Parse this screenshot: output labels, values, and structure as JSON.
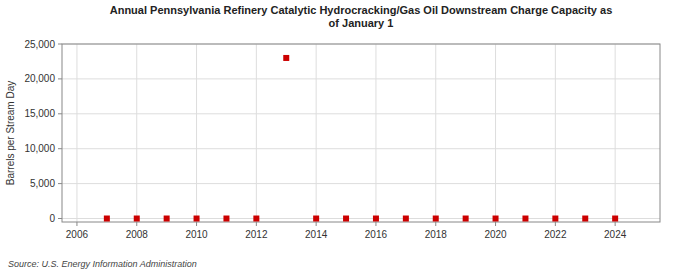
{
  "chart_data": {
    "type": "scatter",
    "title": "Annual Pennsylvania Refinery Catalytic Hydrocracking/Gas Oil Downstream Charge Capacity as\nof January 1",
    "y_label": "Barrels per Stream Day",
    "source": "Source: U.S. Energy Information Administration",
    "x": [
      2007,
      2008,
      2009,
      2010,
      2011,
      2012,
      2013,
      2014,
      2015,
      2016,
      2017,
      2018,
      2019,
      2020,
      2021,
      2022,
      2023,
      2024
    ],
    "values": [
      0,
      0,
      0,
      0,
      0,
      0,
      23000,
      0,
      0,
      0,
      0,
      0,
      0,
      0,
      0,
      0,
      0,
      0
    ],
    "color": "#cc0000",
    "marker": "square",
    "xlim": [
      2005.5,
      2025.5
    ],
    "ylim": [
      -500,
      25000
    ],
    "xticks": [
      2006,
      2008,
      2010,
      2012,
      2014,
      2016,
      2018,
      2020,
      2022,
      2024
    ],
    "yticks": [
      0,
      {
        "value": 5000,
        "label": "5,000"
      },
      {
        "value": 10000,
        "label": "10,000"
      },
      {
        "value": 15000,
        "label": "15,000"
      },
      {
        "value": 20000,
        "label": "20,000"
      },
      {
        "value": 25000,
        "label": "25,000"
      }
    ],
    "grid": true
  }
}
